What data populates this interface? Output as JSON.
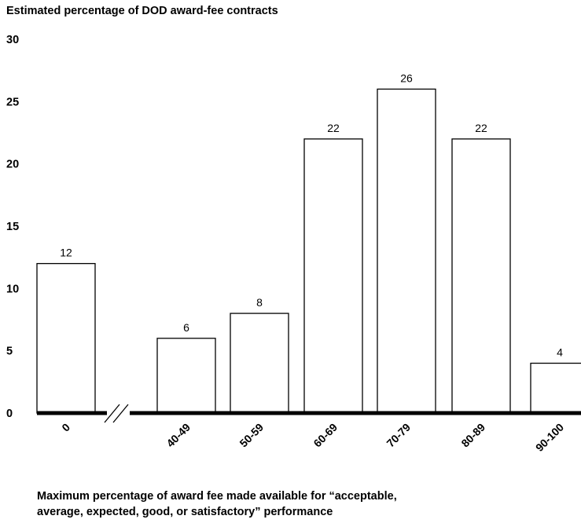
{
  "chart_data": {
    "type": "bar",
    "title": "Estimated percentage of DOD award-fee contracts",
    "xlabel_lines": [
      "Maximum percentage of award fee made available for “acceptable,",
      "average, expected, good, or satisfactory” performance"
    ],
    "ylabel": "",
    "ylim": [
      0,
      30
    ],
    "yticks": [
      0,
      5,
      10,
      15,
      20,
      25,
      30
    ],
    "categories": [
      "0",
      "40-49",
      "50-59",
      "60-69",
      "70-79",
      "80-89",
      "90-100"
    ],
    "values": [
      12,
      6,
      8,
      22,
      26,
      22,
      4
    ],
    "data_labels": [
      "12",
      "6",
      "8",
      "22",
      "26",
      "22",
      "4"
    ],
    "axis_break": "between 0 and 40-49",
    "grid": false,
    "legend": "none",
    "colors": {
      "bar_fill": "#ffffff",
      "bar_stroke": "#000000",
      "axis": "#000000"
    }
  }
}
